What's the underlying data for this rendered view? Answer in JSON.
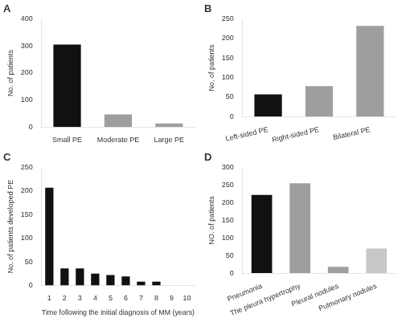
{
  "chart_data": [
    {
      "type": "bar",
      "title": "A",
      "categories": [
        "Small PE",
        "Moderate PE",
        "Large PE"
      ],
      "values": [
        305,
        47,
        13
      ],
      "colors": [
        "#111111",
        "#9e9e9e",
        "#9e9e9e"
      ],
      "ylabel": "No. of patients",
      "ylim": [
        0,
        400
      ],
      "yticks": [
        0,
        100,
        200,
        300,
        400
      ],
      "grid": false
    },
    {
      "type": "bar",
      "title": "B",
      "categories": [
        "Left-sided PE",
        "Right-sided PE",
        "Bilateral PE"
      ],
      "values": [
        57,
        78,
        232
      ],
      "colors": [
        "#111111",
        "#9e9e9e",
        "#9e9e9e"
      ],
      "ylabel": "No. of patients",
      "ylim": [
        0,
        250
      ],
      "yticks": [
        0,
        50,
        100,
        150,
        200,
        250
      ],
      "grid": false
    },
    {
      "type": "bar",
      "title": "C",
      "categories": [
        1,
        2,
        3,
        4,
        5,
        6,
        7,
        8,
        9,
        10
      ],
      "values": [
        207,
        36,
        36,
        25,
        22,
        19,
        8,
        8,
        0,
        0
      ],
      "colors": [
        "#111111",
        "#111111",
        "#111111",
        "#111111",
        "#111111",
        "#111111",
        "#111111",
        "#111111",
        "#111111",
        "#111111"
      ],
      "ylabel": "No. of patients developed PE",
      "xlabel": "Time following the initial diagnosis of MM (years)",
      "ylim": [
        0,
        250
      ],
      "yticks": [
        0,
        50,
        100,
        150,
        200,
        250
      ],
      "grid": false
    },
    {
      "type": "bar",
      "title": "D",
      "categories": [
        "Pneumonia",
        "The pleura hypertrophy",
        "Pleural nodules",
        "Pulmonary nodules"
      ],
      "values": [
        222,
        255,
        18,
        70
      ],
      "colors": [
        "#111111",
        "#9e9e9e",
        "#9e9e9e",
        "#c8c8c8"
      ],
      "ylabel": "NO. of patients",
      "ylim": [
        0,
        300
      ],
      "yticks": [
        0,
        50,
        100,
        150,
        200,
        250,
        300
      ],
      "grid": false
    }
  ]
}
